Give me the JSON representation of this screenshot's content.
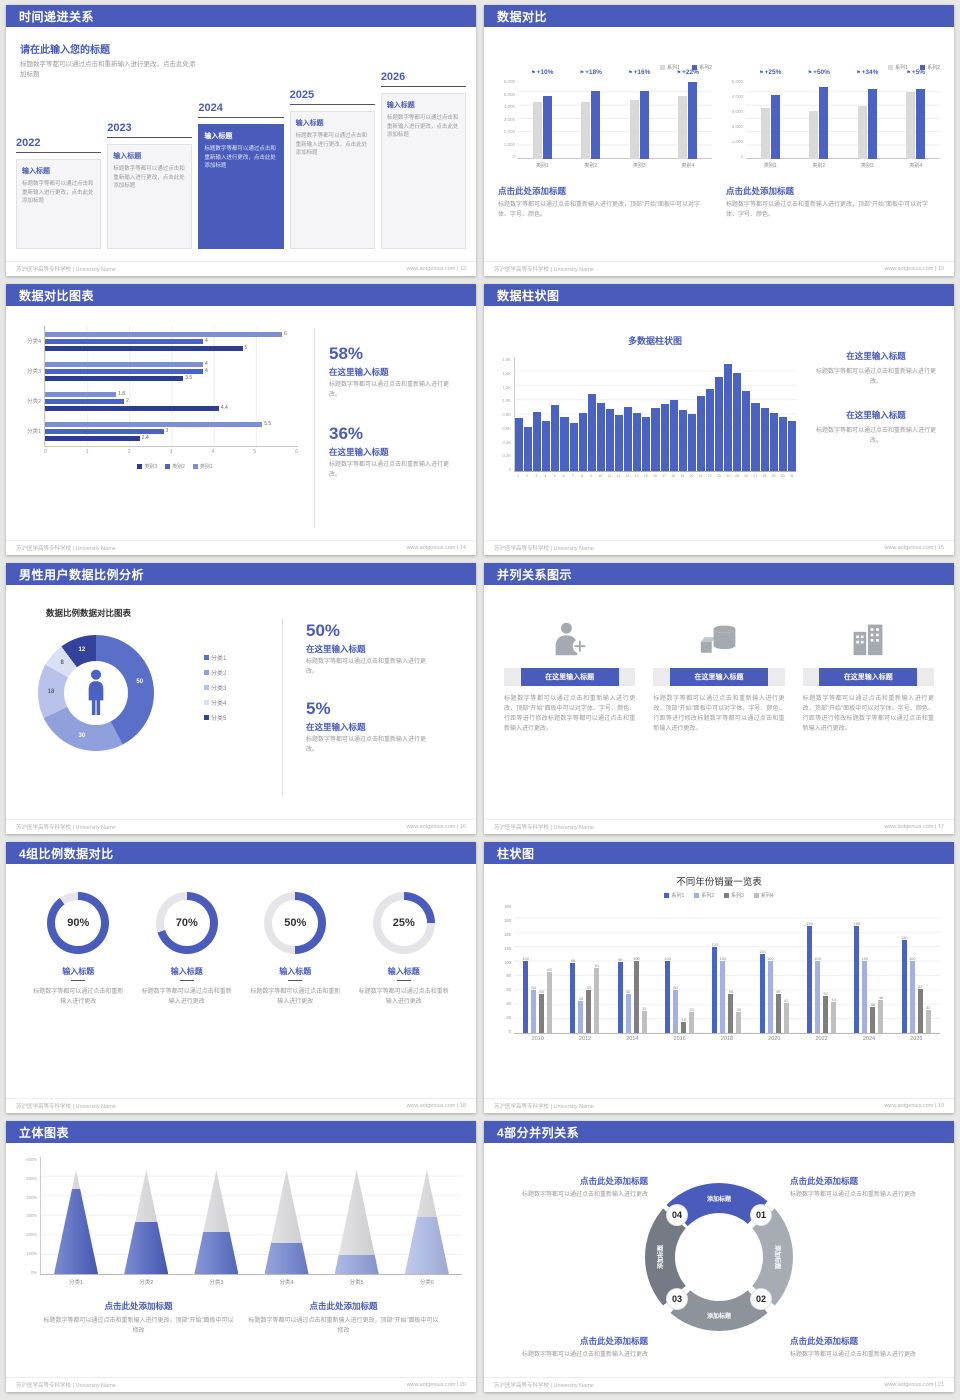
{
  "meta": {
    "accent": "#4a5cbb",
    "bar_blue": "#4a62c3",
    "bar_gray": "#d9d9d9",
    "footer_left": "苏沪医学高等专科学校 | University Name",
    "footer_site": "www.aotgenius.com"
  },
  "s12": {
    "title": "时间递进关系",
    "page": "12",
    "intro_title": "请在此输入您的标题",
    "intro_text": "标题数字等都可以通过点击和重新输入进行更改，点击此处添加标题",
    "items": [
      {
        "year": "2022",
        "label": "输入标题",
        "text": "标题数字等都可以通过点击和重新输入进行更改，点击此处添加标题"
      },
      {
        "year": "2023",
        "label": "输入标题",
        "text": "标题数字等都可以通过点击和重新输入进行更改，点击此处添加标题"
      },
      {
        "year": "2024",
        "label": "输入标题",
        "text": "标题数字等都可以通过点击和重新输入进行更改，点击此处添加标题"
      },
      {
        "year": "2025",
        "label": "输入标题",
        "text": "标题数字等都可以通过点击和重新输入进行更改，点击此处添加标题"
      },
      {
        "year": "2026",
        "label": "输入标题",
        "text": "标题数字等都可以通过点击和重新输入进行更改，点击此处添加标题"
      }
    ]
  },
  "s13": {
    "title": "数据对比",
    "page": "13",
    "legend": [
      "系列1",
      "系列2"
    ],
    "chart_data": [
      {
        "type": "bar",
        "categories": [
          "类别1",
          "类别2",
          "类别3",
          "类别4"
        ],
        "series": [
          {
            "name": "系列1",
            "values": [
              4300,
              4300,
              4400,
              4700
            ]
          },
          {
            "name": "系列2",
            "values": [
              4750,
              5100,
              5100,
              5800
            ]
          }
        ],
        "growth": [
          "+10%",
          "+18%",
          "+16%",
          "+22%"
        ],
        "ymax": 6000,
        "yticks": [
          "6,000",
          "5,000",
          "4,000",
          "3,000",
          "2,000",
          "1,000",
          "0"
        ]
      },
      {
        "type": "bar",
        "categories": [
          "类别1",
          "类别2",
          "类别3",
          "类别4"
        ],
        "series": [
          {
            "name": "系列1",
            "values": [
              3200,
              3000,
              3300,
              4200
            ]
          },
          {
            "name": "系列2",
            "values": [
              4000,
              4500,
              4400,
              4400
            ]
          }
        ],
        "growth": [
          "+25%",
          "+50%",
          "+34%",
          "+5%"
        ],
        "ymax": 5000,
        "yticks": [
          "5,000",
          "4,000",
          "3,000",
          "2,000",
          "1,000",
          "0"
        ]
      }
    ],
    "captions": [
      {
        "t": "点击此处添加标题",
        "d": "标题数字等都可以通过点击和重新输入进行更改，顶部“开始”面板中可以对字体、字号、颜色。"
      },
      {
        "t": "点击此处添加标题",
        "d": "标题数字等都可以通过点击和重新输入进行更改，顶部“开始”面板中可以对字体、字号、颜色。"
      }
    ]
  },
  "s14": {
    "title": "数据对比图表",
    "page": "14",
    "chart_data": {
      "type": "bar",
      "orientation": "horizontal",
      "groups": [
        {
          "label": "分类4",
          "values": [
            6,
            4,
            5
          ]
        },
        {
          "label": "分类3",
          "values": [
            4,
            4,
            3.5
          ]
        },
        {
          "label": "分类2",
          "values": [
            1.8,
            2,
            4.4
          ]
        },
        {
          "label": "分类1",
          "values": [
            5.5,
            3,
            2.4
          ]
        }
      ],
      "xmax": 6,
      "xticks": [
        "0",
        "1",
        "2",
        "3",
        "4",
        "5",
        "6"
      ]
    },
    "colors": [
      "#7c8fd6",
      "#4a62c3",
      "#2e3d94"
    ],
    "legend": [
      "类别3",
      "类别2",
      "类别1"
    ],
    "legend_colors": [
      "#2e3d94",
      "#4a62c3",
      "#7c8fd6"
    ],
    "stats": [
      {
        "pct": "58%",
        "t": "在这里输入标题",
        "d": "标题数字等都可以通过点击和重新输入进行更改。"
      },
      {
        "pct": "36%",
        "t": "在这里输入标题",
        "d": "标题数字等都可以通过点击和重新输入进行更改。"
      }
    ]
  },
  "s15": {
    "title": "数据柱状图",
    "page": "15",
    "chart_title": "多数据柱状图",
    "chart_data": {
      "type": "bar",
      "x": [
        1,
        2,
        3,
        4,
        5,
        6,
        7,
        8,
        9,
        10,
        11,
        12,
        13,
        14,
        15,
        16,
        17,
        18,
        19,
        20,
        21,
        22,
        23,
        24,
        25,
        26,
        27,
        28,
        29,
        30,
        31
      ],
      "values": [
        750,
        620,
        830,
        700,
        920,
        760,
        680,
        820,
        1080,
        950,
        870,
        780,
        900,
        820,
        760,
        880,
        940,
        1000,
        860,
        800,
        1050,
        1150,
        1320,
        1500,
        1380,
        1120,
        950,
        880,
        820,
        760,
        700
      ],
      "ymax": 1600,
      "yticks": [
        "1.6K",
        "1.4K",
        "1.2K",
        "1.0K",
        "0.8K",
        "0.6K",
        "0.4K",
        "0.2K",
        "0"
      ]
    },
    "blocks": [
      {
        "t": "在这里输入标题",
        "d": "标题数字等都可以通过点击和重新输入进行更改。"
      },
      {
        "t": "在这里输入标题",
        "d": "标题数字等都可以通过点击和重新输入进行更改。"
      }
    ]
  },
  "s16": {
    "title": "男性用户数据比例分析",
    "page": "16",
    "chart_title": "数据比例数据对比图表",
    "chart_data": {
      "type": "pie",
      "labels": [
        "分类1",
        "分类2",
        "分类3",
        "分类4",
        "分类5"
      ],
      "values": [
        50,
        30,
        18,
        8,
        12
      ],
      "display_values": [
        "50",
        "30",
        "18",
        "8",
        "12"
      ]
    },
    "colors": [
      "#5a70c8",
      "#8fa0dc",
      "#b7c1e9",
      "#d9dff4",
      "#33429b"
    ],
    "label_colors": [
      "#ffffff",
      "#ffffff",
      "#666666",
      "#666666",
      "#ffffff"
    ],
    "legend": [
      "分类1",
      "分类2",
      "分类3",
      "分类4",
      "分类5"
    ],
    "stats": [
      {
        "pct": "50%",
        "t": "在这里输入标题",
        "d": "标题数字等都可以通过点击和重新输入进行更改。"
      },
      {
        "pct": "5%",
        "t": "在这里输入标题",
        "d": "标题数字等都可以通过点击和重新输入进行更改。"
      }
    ]
  },
  "s17": {
    "title": "并列关系图示",
    "page": "17",
    "cols": [
      {
        "icon": "doctor-icon",
        "btn": "在这里输入标题",
        "text": "标题数字等都可以通过点击和重新输入进行更改，顶部“开始”面板中可以对字体、字号、颜色、行距等进行修改标题数字等都可以通过点击和重新输入进行更改。"
      },
      {
        "icon": "shapes-icon",
        "btn": "在这里输入标题",
        "text": "标题数字等都可以通过点击和重新输入进行更改，顶部“开始”面板中可以对字体、字号、颜色、行距等进行修改标题数字等都可以通过点击和重新输入进行更改。"
      },
      {
        "icon": "building-icon",
        "btn": "在这里输入标题",
        "text": "标题数字等都可以通过点击和重新输入进行更改，顶部“开始”面板中可以对字体、字号、颜色、行距等进行修改标题数字等都可以通过点击和重新输入进行更改。"
      }
    ]
  },
  "s18": {
    "title": "4组比例数据对比",
    "page": "18",
    "items": [
      {
        "pct": 90,
        "label": "90%",
        "t": "输入标题",
        "d": "标题数字等都可以通过点击和重新输入进行更改"
      },
      {
        "pct": 70,
        "label": "70%",
        "t": "输入标题",
        "d": "标题数字等都可以通过点击和重新输入进行更改"
      },
      {
        "pct": 50,
        "label": "50%",
        "t": "输入标题",
        "d": "标题数字等都可以通过点击和重新输入进行更改"
      },
      {
        "pct": 25,
        "label": "25%",
        "t": "输入标题",
        "d": "标题数字等都可以通过点击和重新输入进行更改"
      }
    ]
  },
  "s19": {
    "title": "柱状图",
    "page": "19",
    "chart_title": "不同年份销量一览表",
    "chart_data": {
      "type": "bar",
      "categories": [
        "2010",
        "2012",
        "2014",
        "2016",
        "2018",
        "2020",
        "2022",
        "2024",
        "2026"
      ],
      "series": [
        {
          "name": "系列1",
          "values": [
            100,
            98,
            99,
            100,
            120,
            110,
            150,
            150,
            130
          ]
        },
        {
          "name": "系列2",
          "values": [
            60,
            45,
            55,
            60,
            100,
            100,
            100,
            100,
            100
          ]
        },
        {
          "name": "系列3",
          "values": [
            55,
            60,
            100,
            15,
            55,
            55,
            52,
            36,
            62
          ]
        },
        {
          "name": "系列4",
          "values": [
            85,
            91,
            31,
            30,
            30,
            42,
            43,
            46,
            32
          ]
        }
      ],
      "ymax": 180,
      "yticks": [
        "180",
        "160",
        "140",
        "120",
        "100",
        "80",
        "60",
        "40",
        "20",
        "0"
      ]
    },
    "colors": [
      "#4a62c3",
      "#a3b1e2",
      "#7f7f7f",
      "#bfbfbf"
    ]
  },
  "s20": {
    "title": "立体图表",
    "page": "20",
    "chart_data": {
      "type": "cone",
      "categories": [
        "分类1",
        "分类2",
        "分类3",
        "分类4",
        "分类5",
        "分类6"
      ],
      "values_pct": [
        82,
        50,
        40,
        30,
        18,
        55
      ],
      "yticks": [
        "600%",
        "500%",
        "400%",
        "300%",
        "200%",
        "100%",
        "0%"
      ]
    },
    "cone_colors": [
      "#4a5fc1",
      "#4a5fc1",
      "#5a70c8",
      "#6e82d0",
      "#8fa0dc",
      "#aab7e6"
    ],
    "captions": [
      {
        "t": "点击此处添加标题",
        "d": "标题数字等都可以通过点击和重新输入进行更改，顶部“开始”面板中可以修改"
      },
      {
        "t": "点击此处添加标题",
        "d": "标题数字等都可以通过点击和重新输入进行更改，顶部“开始”面板中可以修改"
      }
    ]
  },
  "s21": {
    "title": "4部分并列关系",
    "page": "21",
    "numbers": [
      "01",
      "02",
      "03",
      "04"
    ],
    "seg_label": "添加标题",
    "blocks": [
      {
        "t": "点击此处添加标题",
        "d": "标题数字等都可以通过点击和重新输入进行更改"
      },
      {
        "t": "点击此处添加标题",
        "d": "标题数字等都可以通过点击和重新输入进行更改"
      },
      {
        "t": "点击此处添加标题",
        "d": "标题数字等都可以通过点击和重新输入进行更改"
      },
      {
        "t": "点击此处添加标题",
        "d": "标题数字等都可以通过点击和重新输入进行更改"
      }
    ]
  }
}
